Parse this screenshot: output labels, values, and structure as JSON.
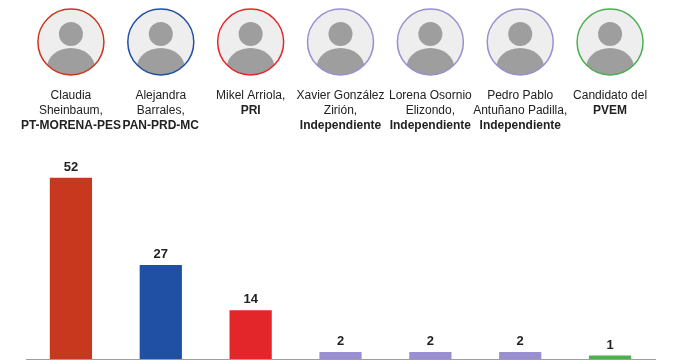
{
  "chart_data": {
    "type": "bar",
    "categories": [
      "Claudia Sheinbaum,",
      "Alejandra Barrales,",
      "Mikel Arriola,",
      "Xavier González Zirión,",
      "Lorena Osornio Elizondo,",
      "Pedro Pablo Antuñano Padilla,",
      "Candidato del"
    ],
    "parties": [
      "PT-MORENA-PES",
      "PAN-PRD-MC",
      "PRI",
      "Independiente",
      "Independiente",
      "Independiente",
      "PVEM"
    ],
    "values": [
      52,
      27,
      14,
      2,
      2,
      2,
      1
    ],
    "colors": [
      "#c8381e",
      "#1f50a3",
      "#e3262a",
      "#9a8fd0",
      "#9a8fd0",
      "#9a8fd0",
      "#4caf50"
    ],
    "ylim": [
      0,
      60
    ],
    "data_labels": true,
    "tick_labels": false,
    "grid": false
  }
}
